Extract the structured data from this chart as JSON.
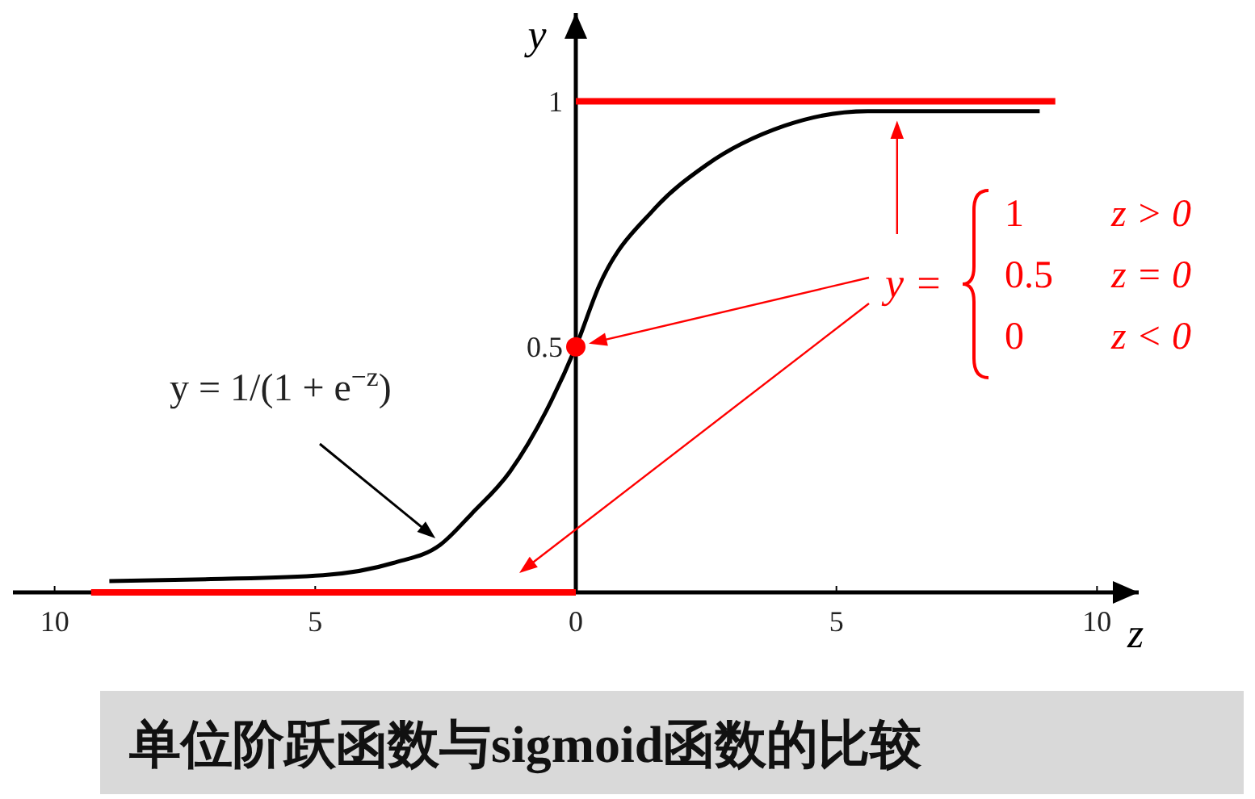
{
  "chart_data": {
    "type": "line",
    "title": "单位阶跃函数与sigmoid函数的比较",
    "xlabel": "z",
    "ylabel": "y",
    "xlim": [
      -10.8,
      10.8
    ],
    "ylim": [
      0,
      1.18
    ],
    "xticks": [
      {
        "value": -10,
        "label": "10"
      },
      {
        "value": -5,
        "label": "5"
      },
      0,
      5,
      10
    ],
    "yticks": [
      0.5,
      1
    ],
    "series": [
      {
        "color": "#000000",
        "x": [
          -8.95,
          -7,
          -4.85,
          -3.5,
          -2.6,
          -2,
          -1.27,
          -0.47,
          0,
          0.45,
          1.5,
          2.5,
          4,
          5.6,
          8.9
        ],
        "values": [
          0.023,
          0.027,
          0.035,
          0.06,
          0.097,
          0.16,
          0.245,
          0.39,
          0.5,
          0.625,
          0.78,
          0.87,
          0.95,
          0.98,
          0.98
        ]
      },
      {
        "type": "line",
        "color": "#ff0000",
        "x": [
          -9.3,
          0
        ],
        "values": [
          0,
          0
        ]
      },
      {
        "type": "line",
        "color": "#ff0000",
        "x": [
          0,
          9.2
        ],
        "values": [
          1,
          1
        ]
      },
      {
        "type": "scatter",
        "color": "#ff0000",
        "x": [
          0
        ],
        "values": [
          0.5
        ]
      }
    ],
    "annotations": [
      "y = 1/(1 + e$^{−z}$)",
      "y =",
      "1",
      "z > 0",
      "0.5",
      "z = 0",
      "0",
      "z < 0"
    ]
  }
}
